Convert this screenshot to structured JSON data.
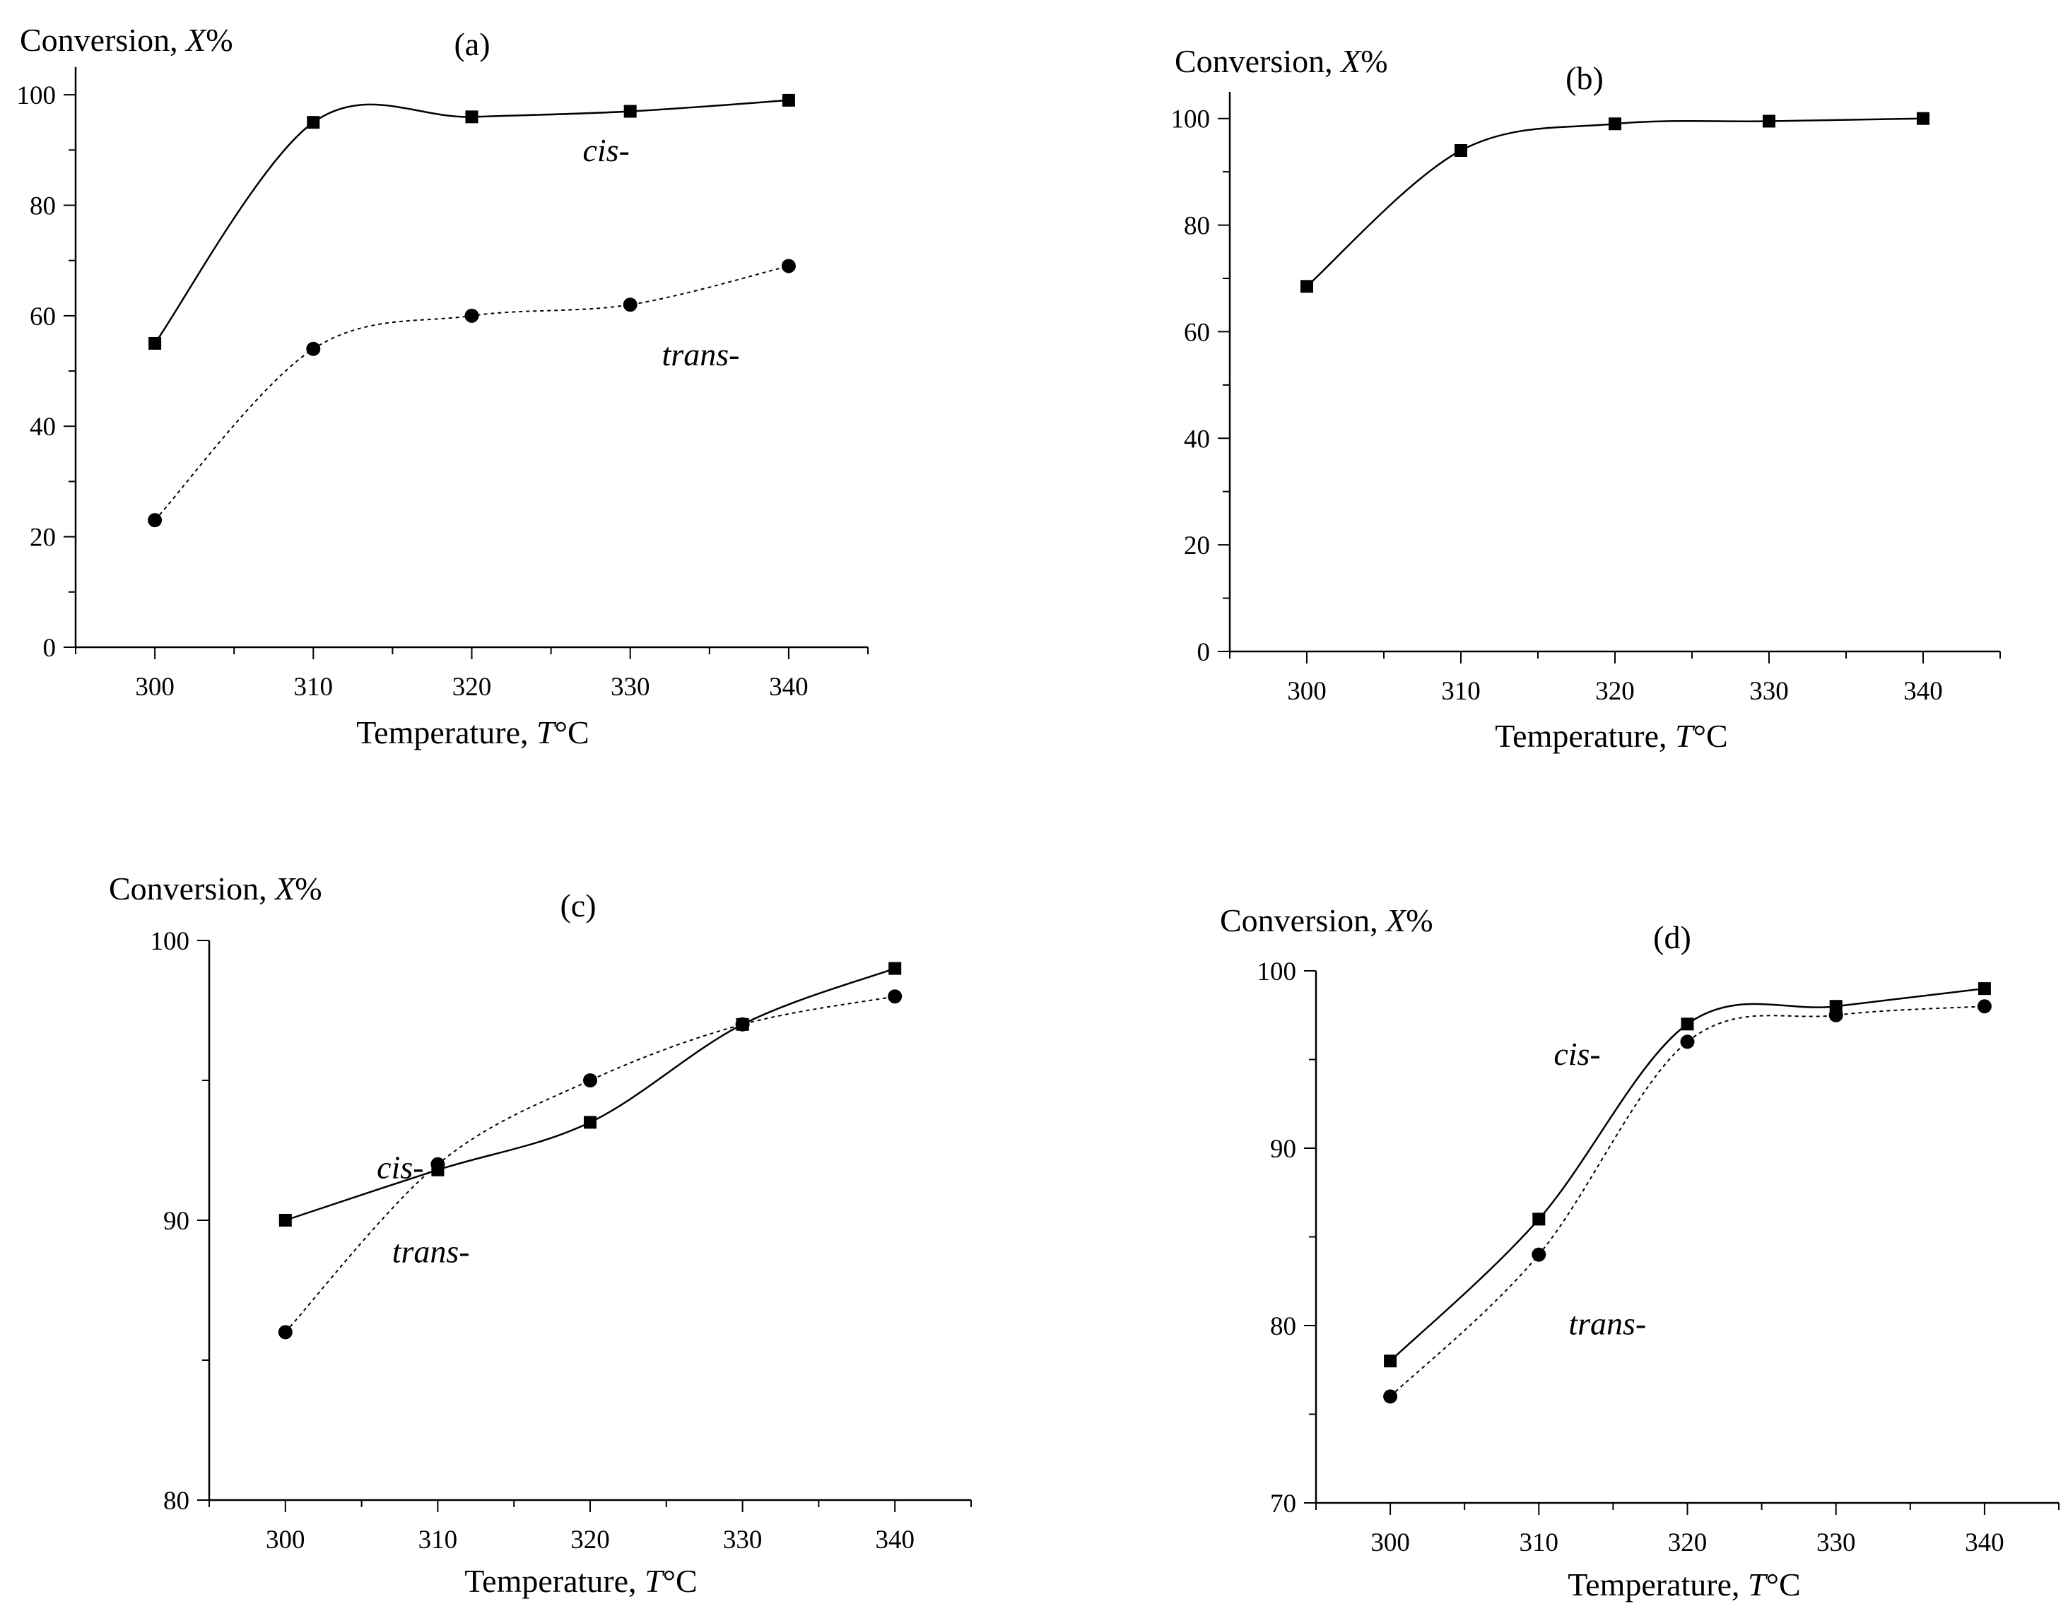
{
  "chart_data": [
    {
      "type": "scatter",
      "panel_label": "(a)",
      "ylabel": {
        "text": "Conversion, ",
        "var": "X",
        "unit": "%"
      },
      "xlabel": {
        "text": "Temperature, ",
        "var": "T",
        "unit": "°C"
      },
      "xlim": [
        295,
        345
      ],
      "ylim": [
        0,
        105
      ],
      "x_ticks": [
        300,
        310,
        320,
        330,
        340
      ],
      "x_tick_labels": [
        "300",
        "310",
        "320",
        "330",
        "340"
      ],
      "y_ticks": [
        0,
        20,
        40,
        60,
        80,
        100
      ],
      "y_tick_labels": [
        "0",
        "20",
        "40",
        "60",
        "80",
        "100"
      ],
      "grid": false,
      "series": [
        {
          "name": "cis-",
          "marker": "square",
          "line": "solid",
          "label_at": [
            327,
            88
          ],
          "x": [
            300,
            310,
            320,
            330,
            340
          ],
          "y": [
            55,
            95,
            96,
            97,
            99
          ]
        },
        {
          "name": "trans-",
          "marker": "circle",
          "line": "dashed",
          "label_at": [
            332,
            51
          ],
          "x": [
            300,
            310,
            320,
            330,
            340
          ],
          "y": [
            23,
            54,
            60,
            62,
            69
          ]
        }
      ]
    },
    {
      "type": "scatter",
      "panel_label": "(b)",
      "ylabel": {
        "text": "Conversion, ",
        "var": "X",
        "unit": "%"
      },
      "xlabel": {
        "text": "Temperature, ",
        "var": "T",
        "unit": "°C"
      },
      "xlim": [
        295,
        345
      ],
      "ylim": [
        0,
        105
      ],
      "x_ticks": [
        300,
        310,
        320,
        330,
        340
      ],
      "x_tick_labels": [
        "300",
        "310",
        "320",
        "330",
        "340"
      ],
      "y_ticks": [
        0,
        20,
        40,
        60,
        80,
        100
      ],
      "y_tick_labels": [
        "0",
        "20",
        "40",
        "60",
        "80",
        "100"
      ],
      "grid": false,
      "series": [
        {
          "name": "",
          "marker": "square",
          "line": "solid",
          "x": [
            300,
            310,
            320,
            330,
            340
          ],
          "y": [
            68.5,
            94,
            99,
            99.5,
            100
          ]
        }
      ]
    },
    {
      "type": "scatter",
      "panel_label": "(c)",
      "ylabel": {
        "text": "Conversion, ",
        "var": "X",
        "unit": "%"
      },
      "xlabel": {
        "text": "Temperature, ",
        "var": "T",
        "unit": "°C"
      },
      "xlim": [
        295,
        345
      ],
      "ylim": [
        80,
        100
      ],
      "x_ticks": [
        300,
        310,
        320,
        330,
        340
      ],
      "x_tick_labels": [
        "300",
        "310",
        "320",
        "330",
        "340"
      ],
      "y_ticks": [
        80,
        90,
        100
      ],
      "y_tick_labels": [
        "80",
        "90",
        "100"
      ],
      "grid": false,
      "series": [
        {
          "name": "cis-",
          "marker": "square",
          "line": "solid",
          "label_at": [
            306,
            91.5
          ],
          "x": [
            300,
            310,
            320,
            330,
            340
          ],
          "y": [
            90,
            91.8,
            93.5,
            97,
            99
          ]
        },
        {
          "name": "trans-",
          "marker": "circle",
          "line": "dashed",
          "label_at": [
            307,
            88.5
          ],
          "x": [
            300,
            310,
            320,
            330,
            340
          ],
          "y": [
            86,
            92,
            95,
            97,
            98
          ]
        }
      ]
    },
    {
      "type": "scatter",
      "panel_label": "(d)",
      "ylabel": {
        "text": "Conversion, ",
        "var": "X",
        "unit": "%"
      },
      "xlabel": {
        "text": "Temperature, ",
        "var": "T",
        "unit": "°C"
      },
      "xlim": [
        295,
        345
      ],
      "ylim": [
        70,
        100
      ],
      "x_ticks": [
        300,
        310,
        320,
        330,
        340
      ],
      "x_tick_labels": [
        "300",
        "310",
        "320",
        "330",
        "340"
      ],
      "y_ticks": [
        70,
        80,
        90,
        100
      ],
      "y_tick_labels": [
        "70",
        "80",
        "90",
        "100"
      ],
      "grid": false,
      "series": [
        {
          "name": "cis-",
          "marker": "square",
          "line": "solid",
          "label_at": [
            311,
            94.7
          ],
          "x": [
            300,
            310,
            320,
            330,
            340
          ],
          "y": [
            78,
            86,
            97,
            98,
            99
          ]
        },
        {
          "name": "trans-",
          "marker": "circle",
          "line": "dashed",
          "label_at": [
            312,
            79.5
          ],
          "x": [
            300,
            310,
            320,
            330,
            340
          ],
          "y": [
            76,
            84,
            96,
            97.5,
            98
          ]
        }
      ]
    }
  ]
}
